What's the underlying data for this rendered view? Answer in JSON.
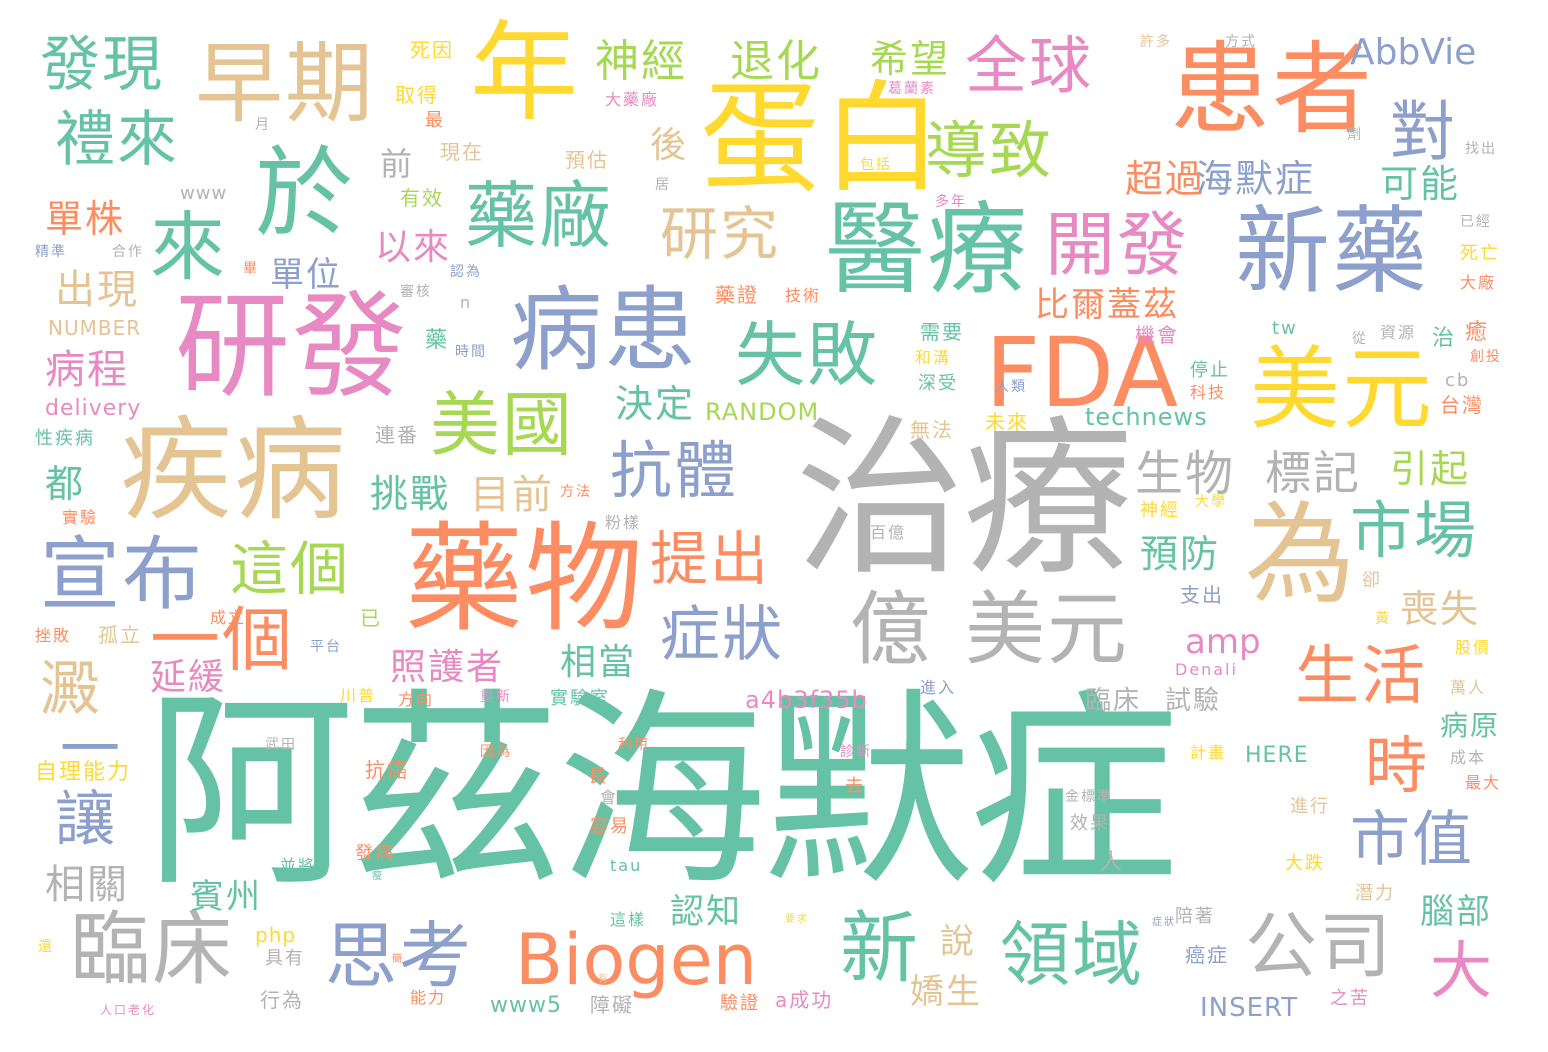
{
  "title": "阿茲海默症 word cloud",
  "palette": {
    "teal": "#66c2a5",
    "orange": "#fc8d62",
    "blue": "#8da0cb",
    "pink": "#e78ac3",
    "green": "#a6d854",
    "yellow": "#ffd92f",
    "tan": "#e5c494",
    "gray": "#b3b3b3"
  },
  "words": {
    "w01": "阿茲海默症",
    "w02": "治療",
    "w03": "蛋白",
    "w04": "藥物",
    "w05": "研發",
    "w06": "疾病",
    "w07": "年",
    "w08": "患者",
    "w09": "醫療",
    "w10": "新藥",
    "w11": "FDA",
    "w12": "病患",
    "w13": "美元",
    "w14": "為",
    "w15": "早期",
    "w16": "於",
    "w17": "來",
    "w18": "億",
    "w19": "美元",
    "w20": "Biogen",
    "w21": "宣布",
    "w22": "臨床",
    "w23": "思考",
    "w24": "領域",
    "w25": "公司",
    "w26": "新",
    "w27": "藥廠",
    "w28": "開發",
    "w29": "美國",
    "w30": "失敗",
    "w31": "全球",
    "w32": "導致",
    "w33": "抗體",
    "w34": "症狀",
    "w35": "一個",
    "w36": "市場",
    "w37": "生活",
    "w38": "提出",
    "w39": "發現",
    "w40": "禮來",
    "w41": "研究",
    "w42": "對",
    "w43": "這個",
    "w44": "澱",
    "w45": "讓",
    "w46": "時",
    "w47": "市值",
    "w48": "大",
    "w49": "生物",
    "w50": "標記",
    "w51": "神經",
    "w52": "退化",
    "w53": "AbbVie",
    "w54": "海默症",
    "w55": "可能",
    "w56": "希望",
    "w57": "超過",
    "w58": "一",
    "w59": "相關",
    "w60": "目前",
    "w61": "挑戰",
    "w62": "引起",
    "w63": "預防",
    "w64": "喪失",
    "w65": "amp",
    "w66": "照護者",
    "w67": "相當",
    "w68": "延緩",
    "w69": "單位",
    "w70": "以來",
    "w71": "出現",
    "w72": "單株",
    "w73": "病程",
    "w74": "都",
    "w75": "後",
    "w76": "前",
    "w77": "決定",
    "w78": "比爾蓋茲",
    "w79": "臨床",
    "w80": "試驗",
    "w81": "病原",
    "w82": "腦部",
    "w83": "賓州",
    "w84": "認知",
    "w85": "說",
    "w86": "嬌生",
    "w87": "technews",
    "w88": "RANDOM",
    "w89": "a4b3f35b",
    "w90": "NUMBER",
    "w91": "delivery",
    "w92": "HERE",
    "w93": "INSERT",
    "w94": "www5",
    "w95": "php",
    "w96": "www",
    "w97": "自理能力",
    "w98": "性疾病",
    "w99": "死因",
    "w100": "取得",
    "w101": "現在",
    "w102": "有效",
    "w103": "預估",
    "w104": "大藥廠",
    "w105": "最",
    "w106": "包括",
    "w107": "多年",
    "w108": "許多",
    "w109": "方式",
    "w110": "找出",
    "w111": "已經",
    "w112": "死亡",
    "w113": "大廠",
    "w114": "創投",
    "w115": "台灣",
    "w116": "藥證",
    "w117": "技術",
    "w118": "機會",
    "w119": "需要",
    "w120": "和溝",
    "w121": "深受",
    "w122": "人類",
    "w123": "停止",
    "w124": "科技",
    "w125": "無法",
    "w126": "未來",
    "w127": "連番",
    "w128": "實驗",
    "w129": "方法",
    "w130": "粉樣",
    "w131": "大學",
    "w132": "百億",
    "w133": "支出",
    "w134": "成立",
    "w135": "挫敗",
    "w136": "孤立",
    "w137": "平台",
    "w138": "已",
    "w139": "川普",
    "w140": "方向",
    "w141": "重新",
    "w142": "實驗室",
    "w143": "Denali",
    "w144": "股價",
    "w145": "萬人",
    "w146": "武田",
    "w147": "抗癌",
    "w148": "因為",
    "w149": "長",
    "w150": "利用",
    "w151": "診斷",
    "w152": "去",
    "w153": "計畫",
    "w154": "成本",
    "w155": "最大",
    "w156": "進入",
    "w157": "金標準",
    "w158": "進行",
    "w159": "效果",
    "w160": "發病",
    "w161": "容易",
    "w162": "會",
    "w163": "並將",
    "w164": "大跌",
    "w165": "潛力",
    "w166": "tau",
    "w167": "這樣",
    "w168": "陪著",
    "w169": "具有",
    "w170": "能力",
    "w171": "驗證",
    "w172": "a成功",
    "w173": "障礙",
    "w174": "行為",
    "w175": "癌症",
    "w176": "之苦",
    "w177": "人口老化",
    "w178": "精準",
    "w179": "合作",
    "w180": "認為",
    "w181": "審核",
    "w182": "n",
    "w183": "時間",
    "w184": "資源",
    "w185": "從",
    "w186": "tw",
    "w187": "cb",
    "w188": "治",
    "w189": "癒",
    "w190": "藥",
    "w191": "人",
    "w192": "月",
    "w193": "居",
    "w194": "劑",
    "w195": "葛蘭素",
    "w196": "卻",
    "w197": "黃",
    "w198": "神經",
    "w199": "畢",
    "w200": "還",
    "w201": "瘦",
    "w202": "要求",
    "w203": "症狀",
    "w204": "簡",
    "w205": "有"
  }
}
